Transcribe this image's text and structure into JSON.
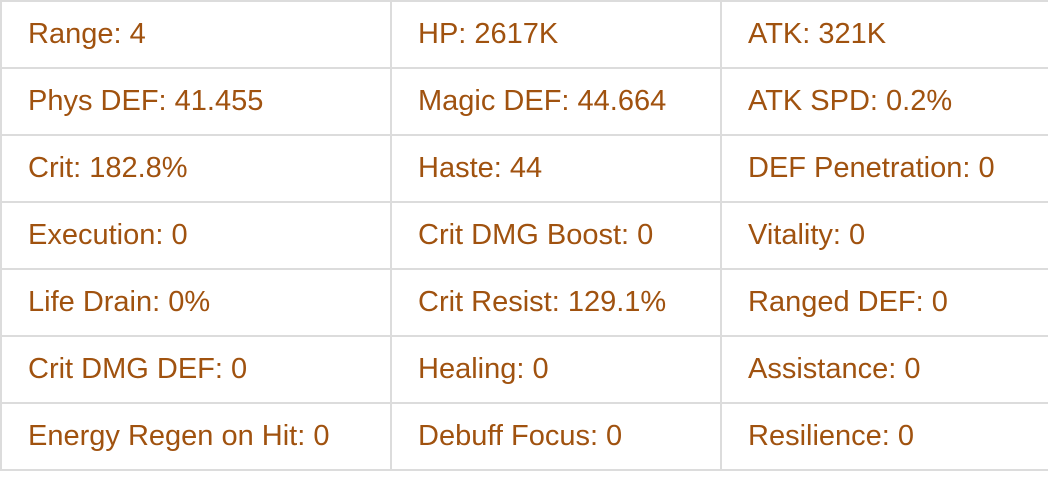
{
  "stats": [
    [
      "Range: 4",
      "HP: 2617K",
      "ATK: 321K"
    ],
    [
      "Phys DEF: 41.455",
      "Magic DEF: 44.664",
      "ATK SPD: 0.2%"
    ],
    [
      "Crit: 182.8%",
      "Haste: 44",
      "DEF Penetration: 0"
    ],
    [
      "Execution: 0",
      "Crit DMG Boost: 0",
      "Vitality: 0"
    ],
    [
      "Life Drain: 0%",
      "Crit Resist: 129.1%",
      "Ranged DEF: 0"
    ],
    [
      "Crit DMG DEF: 0",
      "Healing: 0",
      "Assistance: 0"
    ],
    [
      "Energy Regen on Hit: 0",
      "Debuff Focus: 0",
      "Resilience: 0"
    ]
  ],
  "colors": {
    "text": "#a0520f",
    "border": "#dcdcdc"
  }
}
